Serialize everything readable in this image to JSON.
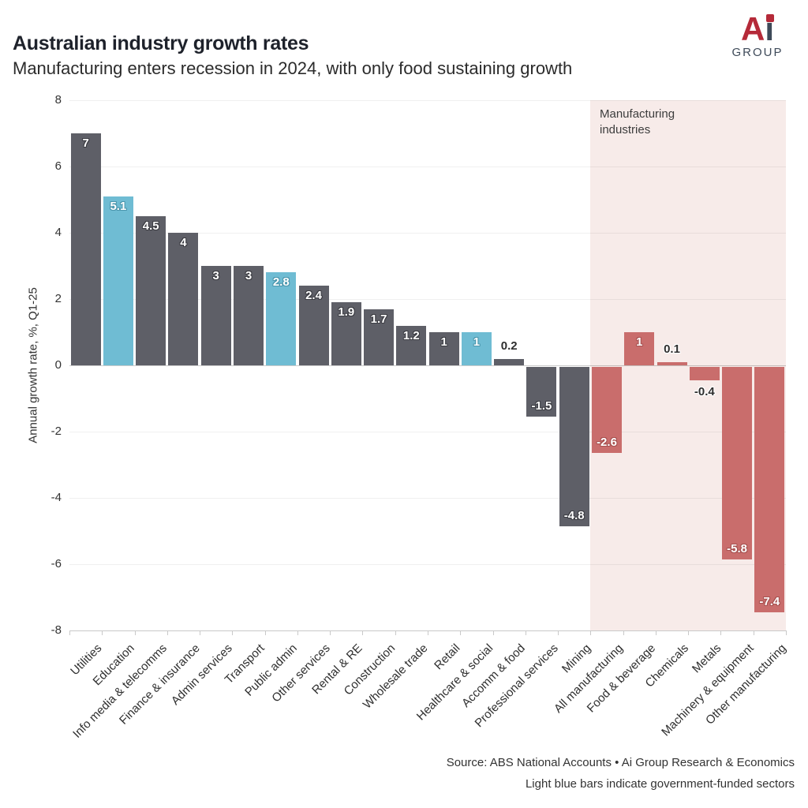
{
  "header": {
    "title": "Australian industry growth rates",
    "subtitle": "Manufacturing enters recession in 2024, with only food sustaining growth"
  },
  "logo": {
    "letter_a": "A",
    "letter_i": "ı",
    "group": "GROUP",
    "red": "#b52a39",
    "slate": "#3e4a59"
  },
  "chart_data": {
    "type": "bar",
    "title": "Australian industry growth rates",
    "subtitle": "Manufacturing enters recession in 2024, with only food sustaining growth",
    "ylabel": "Annual growth rate, %, Q1-25",
    "ylim": [
      -8,
      8
    ],
    "y_ticks": [
      8,
      6,
      4,
      2,
      0,
      -2,
      -4,
      -6,
      -8
    ],
    "grid": "horizontal",
    "annotation": "Manufacturing industries",
    "categories": [
      "Utilities",
      "Education",
      "Info media & telecomms",
      "Finance & insurance",
      "Admin services",
      "Transport",
      "Public admin",
      "Other services",
      "Rental & RE",
      "Construction",
      "Wholesale trade",
      "Retail",
      "Healthcare & social",
      "Accomm & food",
      "Professional services",
      "Mining",
      "All manufacturing",
      "Food & beverage",
      "Chemicals",
      "Metals",
      "Machinery & equipment",
      "Other manufacturing"
    ],
    "values": [
      7,
      5.1,
      4.5,
      4,
      3,
      3,
      2.8,
      2.4,
      1.9,
      1.7,
      1.2,
      1,
      1,
      0.2,
      -1.5,
      -4.8,
      -2.6,
      1,
      0.1,
      -0.4,
      -5.8,
      -7.4
    ],
    "labels": [
      "7",
      "5.1",
      "4.5",
      "4",
      "3",
      "3",
      "2.8",
      "2.4",
      "1.9",
      "1.7",
      "1.2",
      "1",
      "1",
      "0.2",
      "-1.5",
      "-4.8",
      "-2.6",
      "1",
      "0.1",
      "-0.4",
      "-5.8",
      "-7.4"
    ],
    "groups": [
      "services",
      "government",
      "services",
      "services",
      "services",
      "services",
      "government",
      "services",
      "services",
      "services",
      "services",
      "services",
      "government",
      "services",
      "services",
      "services",
      "manufacturing",
      "manufacturing",
      "manufacturing",
      "manufacturing",
      "manufacturing",
      "manufacturing"
    ],
    "colors": {
      "services": "#5e5f67",
      "government": "#6fbcd3",
      "manufacturing": "#c96d6c",
      "manufacturing_band": "#f7ebe9"
    },
    "halos": {
      "services": "#3c3d43",
      "government": "#4a96ad",
      "manufacturing": "#a85150"
    },
    "outside_label_color": "#2e2e2e"
  },
  "footer": {
    "source": "Source: ABS National Accounts • Ai Group Research & Economics",
    "note": "Light blue bars indicate government-funded sectors"
  }
}
